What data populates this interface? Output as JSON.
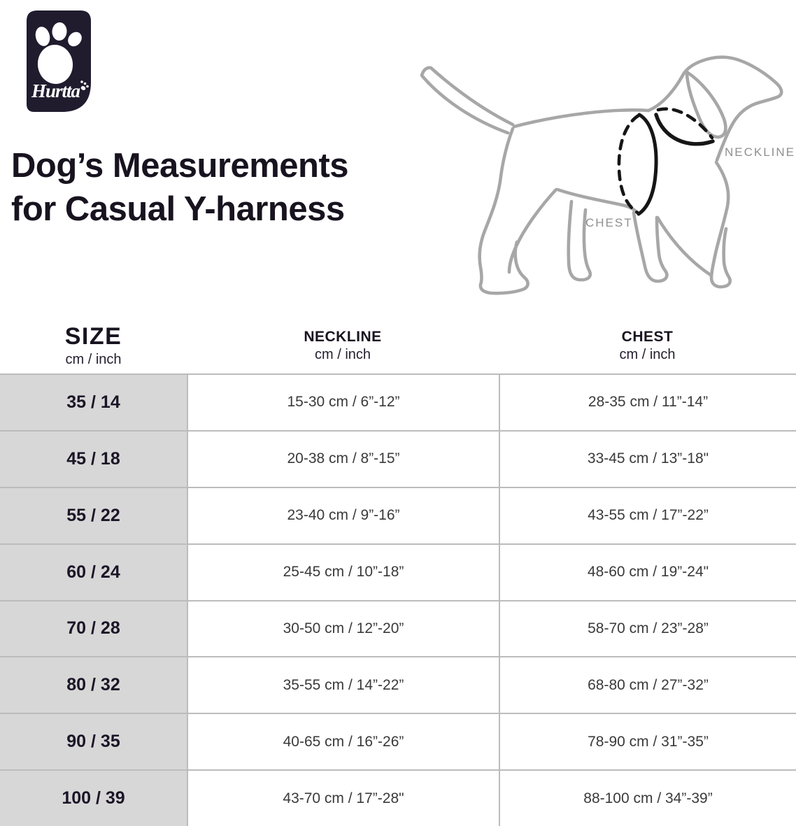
{
  "brand": {
    "name": "Hurtta"
  },
  "title": {
    "line1": "Dog’s Measurements",
    "line2": "for Casual Y-harness"
  },
  "diagram": {
    "neckline_label": "NECKLINE",
    "chest_label": "CHEST"
  },
  "table": {
    "columns": [
      {
        "label": "SIZE",
        "unit": "cm / inch"
      },
      {
        "label": "NECKLINE",
        "unit": "cm / inch"
      },
      {
        "label": "CHEST",
        "unit": "cm / inch"
      }
    ],
    "rows": [
      {
        "size": "35 / 14",
        "neckline": "15-30 cm / 6”-12”",
        "chest": "28-35 cm / 11”-14”"
      },
      {
        "size": "45 / 18",
        "neckline": "20-38 cm / 8”-15”",
        "chest": "33-45 cm / 13”-18\""
      },
      {
        "size": "55 / 22",
        "neckline": "23-40 cm / 9”-16”",
        "chest": "43-55 cm / 17”-22”"
      },
      {
        "size": "60 / 24",
        "neckline": "25-45 cm / 10”-18”",
        "chest": "48-60 cm / 19”-24\""
      },
      {
        "size": "70 / 28",
        "neckline": "30-50 cm / 12”-20”",
        "chest": "58-70 cm / 23”-28”"
      },
      {
        "size": "80 / 32",
        "neckline": "35-55 cm / 14”-22”",
        "chest": "68-80 cm / 27”-32”"
      },
      {
        "size": "90 / 35",
        "neckline": "40-65 cm / 16”-26”",
        "chest": "78-90 cm / 31”-35”"
      },
      {
        "size": "100 / 39",
        "neckline": "43-70 cm / 17”-28\"",
        "chest": "88-100 cm / 34”-39”"
      }
    ]
  },
  "colors": {
    "logo_background": "#201c2e",
    "title_text": "#18131f",
    "dog_outline": "#a7a7a7",
    "diagram_label": "#8f8f8f",
    "harness_line": "#161616",
    "size_column_background": "#d7d7d7",
    "table_border": "#bcbcbc",
    "data_text": "#3a3a3a"
  }
}
